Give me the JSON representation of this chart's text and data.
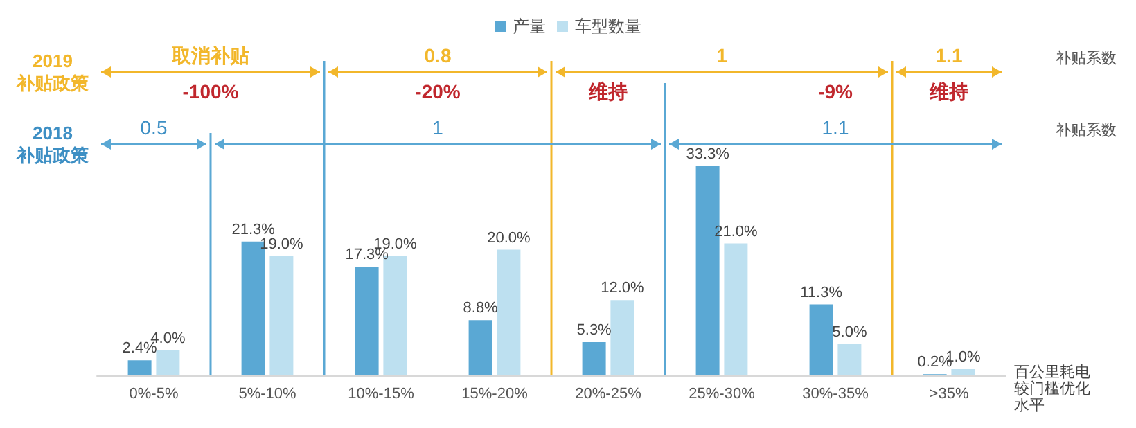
{
  "chart_data": {
    "type": "bar",
    "categories": [
      "0%-5%",
      "5%-10%",
      "10%-15%",
      "15%-20%",
      "20%-25%",
      "25%-30%",
      "30%-35%",
      ">35%"
    ],
    "series": [
      {
        "name": "产量",
        "color": "#5aa8d4",
        "values": [
          2.4,
          21.3,
          17.3,
          8.8,
          5.3,
          33.3,
          11.3,
          0.2
        ],
        "value_labels": [
          "2.4%",
          "21.3%",
          "17.3%",
          "8.8%",
          "5.3%",
          "33.3%",
          "11.3%",
          "0.2%"
        ]
      },
      {
        "name": "车型数量",
        "color": "#bde0f0",
        "values": [
          4.0,
          19.0,
          19.0,
          20.0,
          12.0,
          21.0,
          5.0,
          1.0
        ],
        "value_labels": [
          "4.0%",
          "19.0%",
          "19.0%",
          "20.0%",
          "12.0%",
          "21.0%",
          "5.0%",
          "1.0%"
        ]
      }
    ],
    "xlabel": "百公里耗电较门槛优化水平",
    "legend": "top",
    "tick_labels": "x",
    "grid": false,
    "annotations": [
      "2019",
      "补贴政策",
      "取消补贴",
      "0.8",
      "1",
      "1.1",
      "补贴系数",
      "-100%",
      "-20%",
      "维持",
      "-9%",
      "维持",
      "2018",
      "补贴政策",
      "0.5",
      "1",
      "1.1",
      "补贴系数"
    ]
  }
}
